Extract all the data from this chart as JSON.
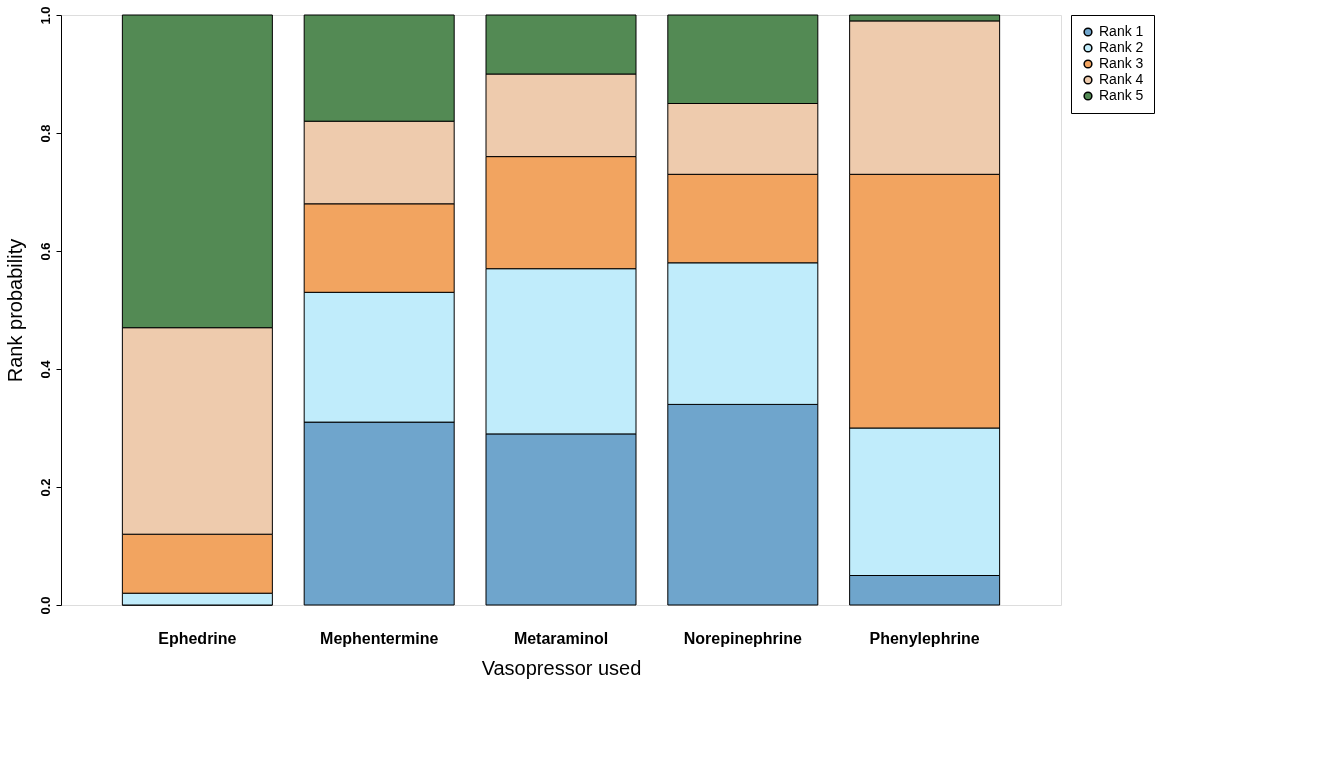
{
  "chart_data": {
    "type": "bar",
    "stacked": true,
    "xlabel": "Vasopressor used",
    "ylabel": "Rank probability",
    "categories": [
      "Ephedrine",
      "Mephentermine",
      "Metaraminol",
      "Norepinephrine",
      "Phenylephrine"
    ],
    "series": [
      {
        "name": "Rank 1",
        "color": "#6fa5cc",
        "values": [
          0.0,
          0.31,
          0.29,
          0.34,
          0.05
        ]
      },
      {
        "name": "Rank 2",
        "color": "#c0ecfb",
        "values": [
          0.02,
          0.22,
          0.28,
          0.24,
          0.25
        ]
      },
      {
        "name": "Rank 3",
        "color": "#f2a460",
        "values": [
          0.1,
          0.15,
          0.19,
          0.15,
          0.43
        ]
      },
      {
        "name": "Rank 4",
        "color": "#eecbad",
        "values": [
          0.35,
          0.14,
          0.14,
          0.12,
          0.26
        ]
      },
      {
        "name": "Rank 5",
        "color": "#538a54",
        "values": [
          0.53,
          0.18,
          0.1,
          0.15,
          0.01
        ]
      }
    ],
    "ylim": [
      0,
      1
    ],
    "yticks": [
      {
        "value": 0,
        "label": "0.0"
      },
      {
        "value": 0.2,
        "label": "0.2"
      },
      {
        "value": 0.4,
        "label": "0.4"
      },
      {
        "value": 0.6,
        "label": "0.6"
      },
      {
        "value": 0.8,
        "label": "0.8"
      },
      {
        "value": 1,
        "label": "1.0"
      }
    ],
    "grid": false,
    "legend": "top right"
  }
}
